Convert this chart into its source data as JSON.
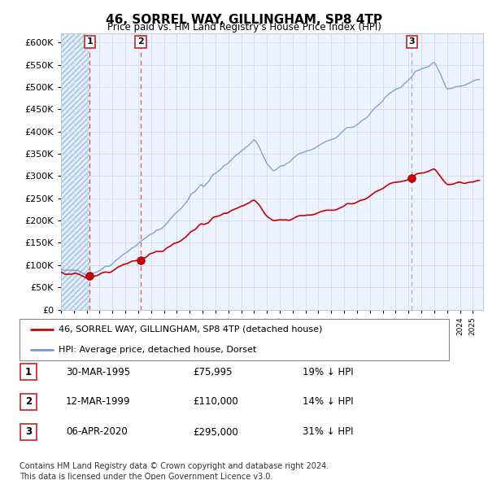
{
  "title": "46, SORREL WAY, GILLINGHAM, SP8 4TP",
  "subtitle": "Price paid vs. HM Land Registry's House Price Index (HPI)",
  "ylim": [
    0,
    620000
  ],
  "ytick_values": [
    0,
    50000,
    100000,
    150000,
    200000,
    250000,
    300000,
    350000,
    400000,
    450000,
    500000,
    550000,
    600000
  ],
  "sale_points": [
    {
      "label": "1",
      "date_x": 1995.23,
      "price": 75995
    },
    {
      "label": "2",
      "date_x": 1999.19,
      "price": 110000
    },
    {
      "label": "3",
      "date_x": 2020.26,
      "price": 295000
    }
  ],
  "sale_color": "#cc0000",
  "hpi_color": "#7799cc",
  "vline_color": "#dd4444",
  "vline_color3": "#aaaacc",
  "background_white": "#ffffff",
  "background_hatch": "#ddeeff",
  "grid_color": "#ccddee",
  "legend_entries": [
    "46, SORREL WAY, GILLINGHAM, SP8 4TP (detached house)",
    "HPI: Average price, detached house, Dorset"
  ],
  "table_rows": [
    {
      "num": "1",
      "date": "30-MAR-1995",
      "price": "£75,995",
      "pct": "19% ↓ HPI"
    },
    {
      "num": "2",
      "date": "12-MAR-1999",
      "price": "£110,000",
      "pct": "14% ↓ HPI"
    },
    {
      "num": "3",
      "date": "06-APR-2020",
      "price": "£295,000",
      "pct": "31% ↓ HPI"
    }
  ],
  "footer": "Contains HM Land Registry data © Crown copyright and database right 2024.\nThis data is licensed under the Open Government Licence v3.0.",
  "xmin": 1993.0,
  "xmax": 2025.8
}
